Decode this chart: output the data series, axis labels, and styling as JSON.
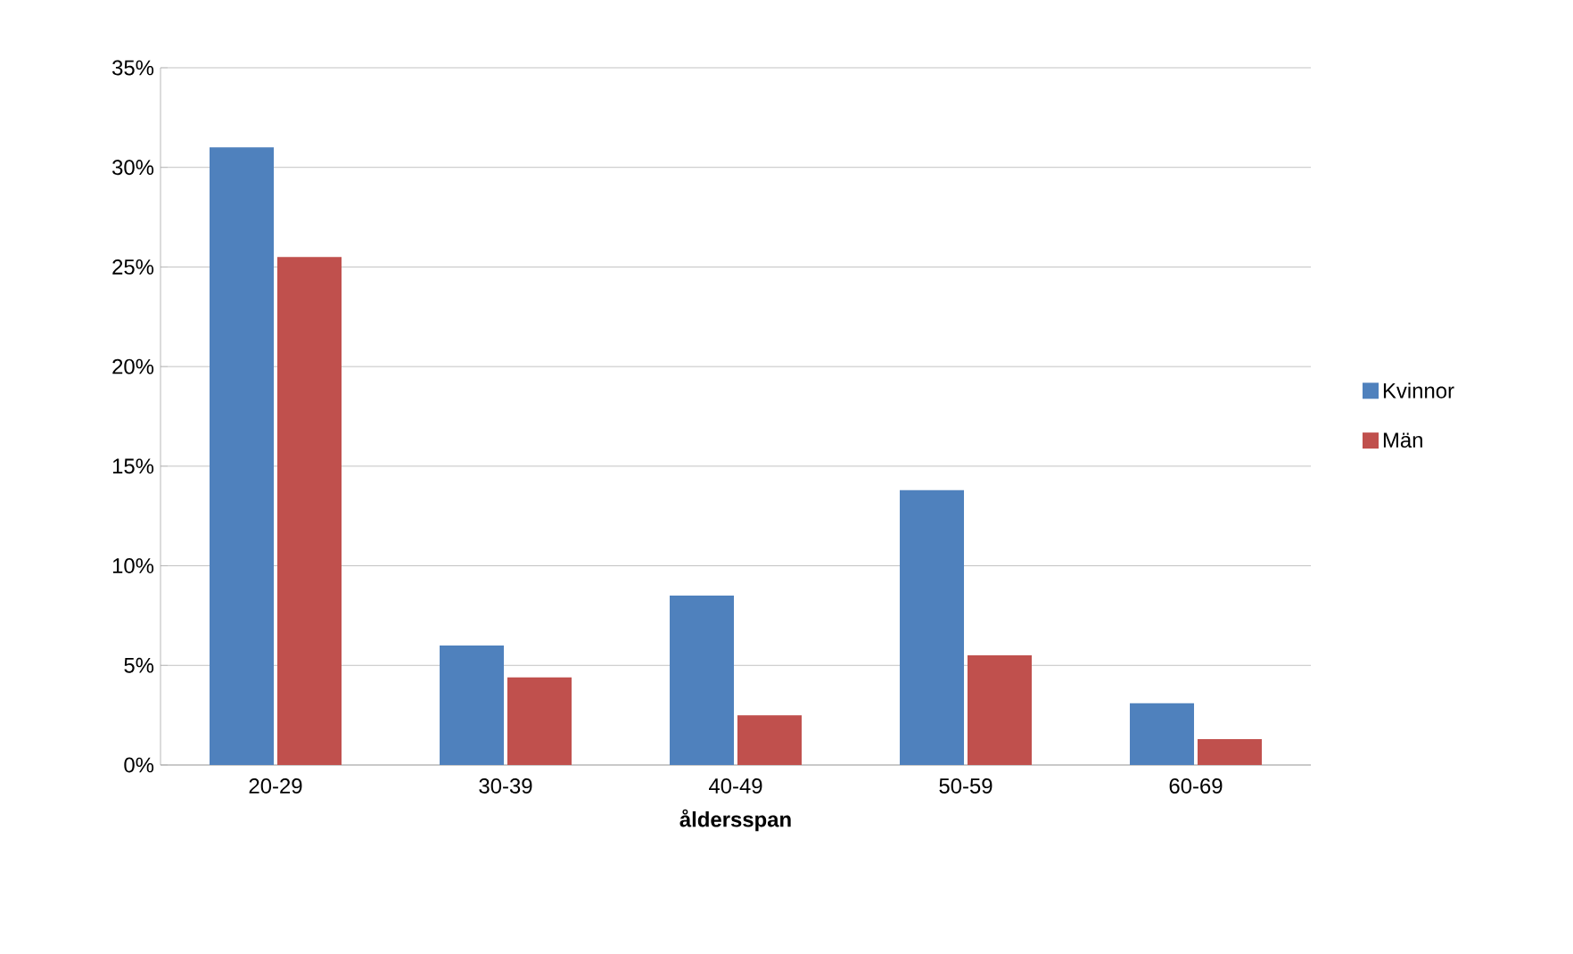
{
  "chart_data": {
    "type": "bar",
    "xlabel": "åldersspan",
    "categories": [
      "20-29",
      "30-39",
      "40-49",
      "50-59",
      "60-69"
    ],
    "series": [
      {
        "name": "Kvinnor",
        "color": "#4f81bd",
        "values": [
          31,
          6,
          8.5,
          13.8,
          3.1
        ]
      },
      {
        "name": "Män",
        "color": "#c0504d",
        "values": [
          25.5,
          4.4,
          2.5,
          5.5,
          1.3
        ]
      }
    ],
    "ylim": [
      0,
      35
    ],
    "yticks": [
      {
        "value": 0,
        "label": "0%"
      },
      {
        "value": 5,
        "label": "5%"
      },
      {
        "value": 10,
        "label": "10%"
      },
      {
        "value": 15,
        "label": "15%"
      },
      {
        "value": 20,
        "label": "20%"
      },
      {
        "value": 25,
        "label": "25%"
      },
      {
        "value": 30,
        "label": "30%"
      },
      {
        "value": 35,
        "label": "35%"
      }
    ],
    "grid": "y",
    "legend": "right"
  }
}
